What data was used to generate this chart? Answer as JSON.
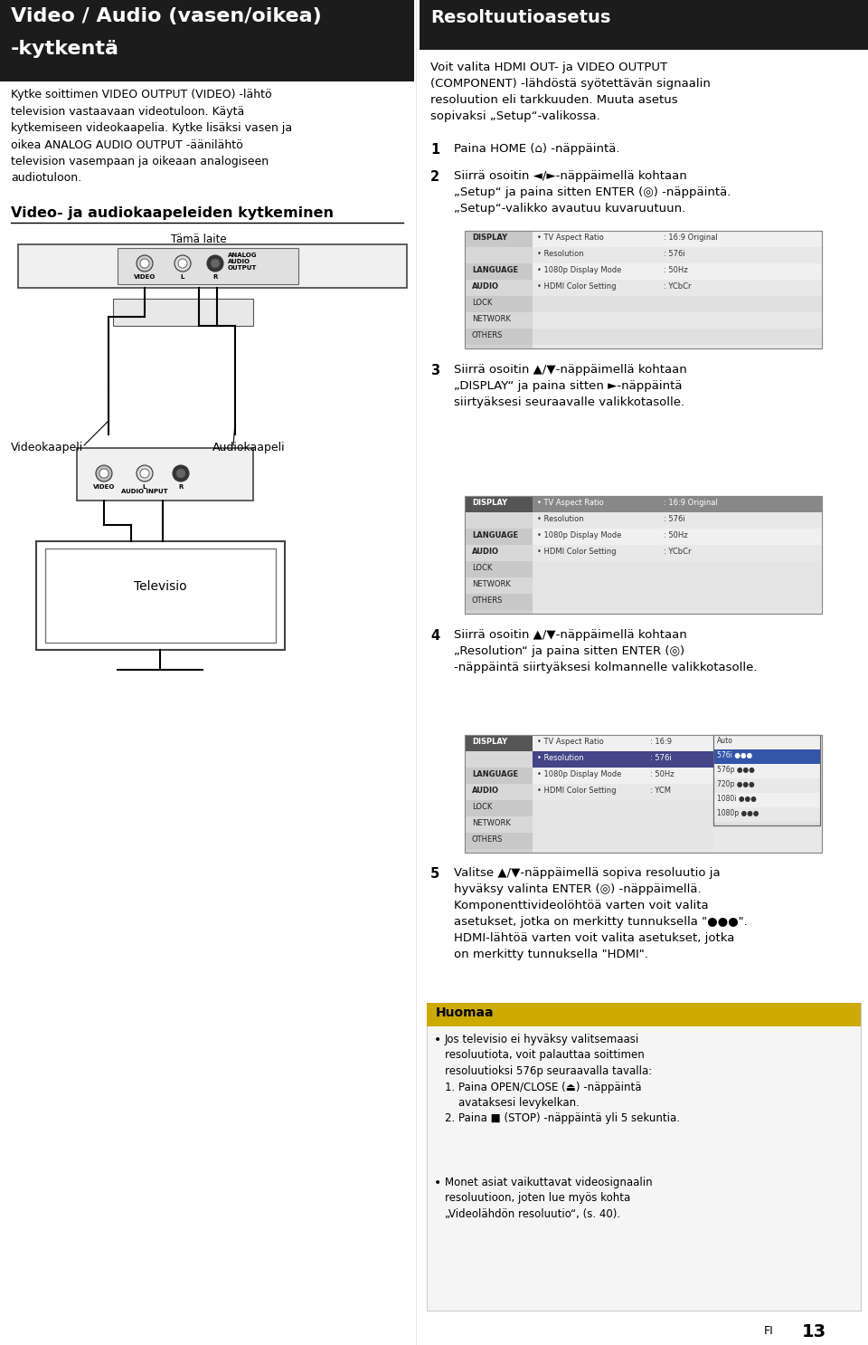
{
  "page_bg": "#ffffff",
  "col_divider": 460,
  "left_header_bg": "#1c1c1c",
  "right_header_bg": "#1c1c1c",
  "header_left_text_line1": "Video / Audio (vasen/oikea)",
  "header_left_text_line2": "-kytkentä",
  "header_right_text": "Resoltuutioasetus",
  "left_body_text": "Kytke soittimen VIDEO OUTPUT (VIDEO) -lähtö\ntelevision vastaavaan videotuloon. Käytä\nkytkemiseen videokaapelia. Kytke lisäksi vasen ja\noikea ANALOG AUDIO OUTPUT -äänilähtö\ntelevision vasempaan ja oikeaan analogiseen\naudiotuloon.",
  "section_title": "Video- ja audiokaapeleiden kytkeminen",
  "right_intro": "Voit valita HDMI OUT- ja VIDEO OUTPUT\n(COMPONENT) -lähdöstä syötettävän signaalin\nresoluution eli tarkkuuden. Muuta asetus\nsopivaksi „Setup“-valikossa.",
  "step1": "Paina HOME (⌂) -näppäintä.",
  "step2": "Siirrä osoitin ◄/►-näppäimellä kohtaan\n„Setup“ ja paina sitten ENTER (◎) -näppäintä.\n„Setup“-valikko avautuu kuvaruutuun.",
  "step3": "Siirrä osoitin ▲/▼-näppäimellä kohtaan\n„DISPLAY“ ja paina sitten ►-näppäintä\nsiirtyäksesi seuraavalle valikkotasolle.",
  "step4": "Siirrä osoitin ▲/▼-näppäimellä kohtaan\n„Resolution“ ja paina sitten ENTER (◎)\n-näppäintä siirtyäksesi kolmannelle valikkotasolle.",
  "step5": "Valitse ▲/▼-näppäimellä sopiva resoluutio ja\nhyväksy valinta ENTER (◎) -näppäimellä.\nKomponenttivideolöhtöä varten voit valita\nasetukset, jotka on merkitty tunnuksella \"●●●\".\nHDMI-lähtöä varten voit valita asetukset, jotka\non merkitty tunnuksella \"HDMI\".",
  "note_title": "Huomaa",
  "note_bullet1": "Jos televisio ei hyväksy valitsemaasi\nresoluutiota, voit palauttaa soittimen\nresoluutioksi 576p seuraavalla tavalla:\n1. Paina OPEN/CLOSE (⏏) -näppäintä\n    avataksesi levykelkan.\n2. Paina ■ (STOP) -näppäintä yli 5 sekuntia.",
  "note_bullet2": "Monet asiat vaikuttavat videosignaalin\nresoluutioon, joten lue myös kohta\n„Videolähdön resoluutio“, (s. 40).",
  "label_tama": "Tämä laite",
  "label_videokaapeli": "Videokaapeli",
  "label_audiokaapeli": "Audiokaapeli",
  "label_televisio": "Televisio",
  "page_num": "13",
  "fi_label": "FI"
}
